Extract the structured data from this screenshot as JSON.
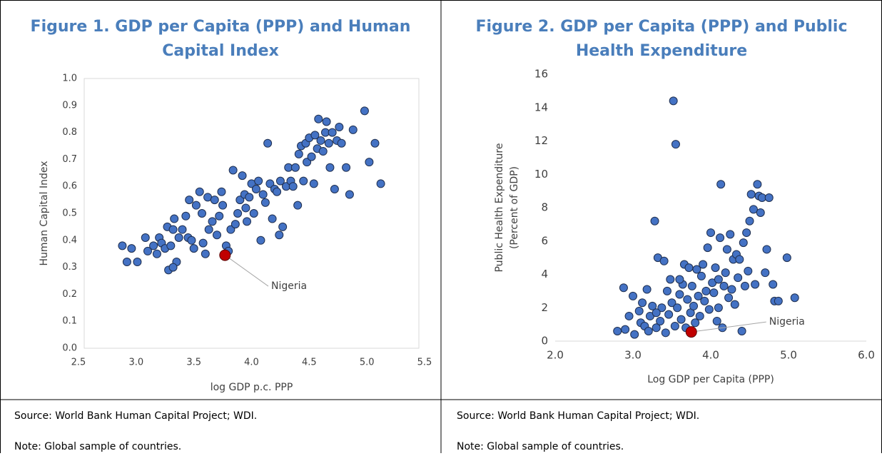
{
  "chart_data": [
    {
      "type": "scatter",
      "title": [
        "Figure 1. GDP per Capita (PPP) and Human",
        "Capital Index"
      ],
      "x_label": "log GDP p.c. PPP",
      "y_label": [
        "Human Capital Index"
      ],
      "xlim": [
        2.5,
        5.5
      ],
      "xticks": [
        2.5,
        {
          "value": 3,
          "label": "3.0"
        },
        3.5,
        {
          "value": 4,
          "label": "4.0"
        },
        4.5,
        {
          "value": 5,
          "label": "5.0"
        },
        5.5
      ],
      "ylim": [
        0,
        1
      ],
      "yticks": [
        {
          "value": 0,
          "label": "0.0"
        },
        0.1,
        0.2,
        0.3,
        0.4,
        0.5,
        0.6,
        0.7,
        0.8,
        0.9,
        {
          "value": 1,
          "label": "1.0"
        }
      ],
      "box": true,
      "color": "#4472c4",
      "x": [
        2.88,
        2.92,
        2.96,
        3.01,
        3.08,
        3.1,
        3.15,
        3.18,
        3.2,
        3.22,
        3.25,
        3.27,
        3.28,
        3.3,
        3.32,
        3.33,
        3.35,
        3.37,
        3.4,
        3.43,
        3.45,
        3.48,
        3.5,
        3.52,
        3.55,
        3.57,
        3.58,
        3.6,
        3.62,
        3.63,
        3.66,
        3.68,
        3.7,
        3.72,
        3.74,
        3.75,
        3.78,
        3.8,
        3.82,
        3.84,
        3.86,
        3.88,
        3.9,
        3.92,
        3.94,
        3.96,
        3.98,
        4.0,
        4.02,
        4.04,
        4.06,
        4.08,
        4.1,
        4.12,
        4.14,
        4.16,
        4.18,
        4.2,
        4.22,
        4.24,
        4.25,
        4.27,
        4.3,
        4.32,
        4.34,
        4.36,
        4.38,
        4.4,
        4.41,
        4.43,
        4.45,
        4.47,
        4.48,
        4.5,
        4.52,
        4.54,
        4.55,
        4.57,
        4.58,
        4.6,
        4.62,
        4.64,
        4.65,
        4.67,
        4.68,
        4.7,
        4.72,
        4.74,
        4.76,
        4.78,
        4.82,
        4.85,
        4.88,
        4.98,
        5.02,
        5.07,
        5.12,
        3.32,
        3.95,
        3.46
      ],
      "y": [
        0.38,
        0.32,
        0.37,
        0.32,
        0.41,
        0.36,
        0.38,
        0.35,
        0.41,
        0.39,
        0.37,
        0.45,
        0.29,
        0.38,
        0.44,
        0.48,
        0.32,
        0.41,
        0.44,
        0.49,
        0.41,
        0.4,
        0.37,
        0.53,
        0.58,
        0.5,
        0.39,
        0.35,
        0.56,
        0.44,
        0.47,
        0.55,
        0.42,
        0.49,
        0.58,
        0.53,
        0.38,
        0.36,
        0.44,
        0.66,
        0.46,
        0.5,
        0.55,
        0.64,
        0.57,
        0.47,
        0.56,
        0.61,
        0.5,
        0.59,
        0.62,
        0.4,
        0.57,
        0.54,
        0.76,
        0.61,
        0.48,
        0.59,
        0.58,
        0.42,
        0.62,
        0.45,
        0.6,
        0.67,
        0.62,
        0.6,
        0.67,
        0.53,
        0.72,
        0.75,
        0.62,
        0.76,
        0.69,
        0.78,
        0.71,
        0.61,
        0.79,
        0.74,
        0.85,
        0.77,
        0.73,
        0.8,
        0.84,
        0.76,
        0.67,
        0.8,
        0.59,
        0.77,
        0.82,
        0.76,
        0.67,
        0.57,
        0.81,
        0.88,
        0.69,
        0.76,
        0.61,
        0.3,
        0.52,
        0.55
      ],
      "highlight": {
        "label": "Nigeria",
        "x": 3.77,
        "y": 0.345,
        "color": "#c00000",
        "label_x": 4.17,
        "label_y": 0.23
      },
      "source": "Source: World Bank Human Capital Project; WDI.",
      "note": "Note: Global sample of countries."
    },
    {
      "type": "scatter",
      "title": [
        "Figure 2. GDP per Capita (PPP) and Public",
        "Health Expenditure"
      ],
      "x_label": "Log GDP per Capita (PPP)",
      "y_label": [
        "Public Health Expenditure",
        "(Percent of GDP)"
      ],
      "xlim": [
        2,
        6
      ],
      "xticks": [
        {
          "value": 2,
          "label": "2.0"
        },
        {
          "value": 3,
          "label": "3.0"
        },
        {
          "value": 4,
          "label": "4.0"
        },
        {
          "value": 5,
          "label": "5.0"
        },
        {
          "value": 6,
          "label": "6.0"
        }
      ],
      "ylim": [
        0,
        16
      ],
      "yticks": [
        0,
        2,
        4,
        6,
        8,
        10,
        12,
        14,
        16
      ],
      "box": false,
      "color": "#4472c4",
      "x": [
        2.8,
        2.88,
        2.9,
        2.95,
        3.0,
        3.02,
        3.08,
        3.1,
        3.12,
        3.15,
        3.18,
        3.2,
        3.22,
        3.25,
        3.28,
        3.3,
        3.32,
        3.35,
        3.37,
        3.4,
        3.42,
        3.44,
        3.46,
        3.48,
        3.5,
        3.52,
        3.54,
        3.55,
        3.57,
        3.6,
        3.62,
        3.64,
        3.66,
        3.68,
        3.7,
        3.72,
        3.74,
        3.76,
        3.78,
        3.8,
        3.82,
        3.84,
        3.86,
        3.88,
        3.9,
        3.92,
        3.94,
        3.96,
        3.98,
        4.0,
        4.02,
        4.04,
        4.06,
        4.08,
        4.1,
        4.12,
        4.13,
        4.15,
        4.17,
        4.19,
        4.21,
        4.23,
        4.25,
        4.27,
        4.29,
        4.31,
        4.33,
        4.35,
        4.37,
        4.4,
        4.42,
        4.44,
        4.46,
        4.48,
        4.5,
        4.52,
        4.55,
        4.57,
        4.6,
        4.62,
        4.64,
        4.66,
        4.7,
        4.72,
        4.75,
        4.8,
        4.82,
        4.87,
        4.98,
        5.08,
        3.6,
        4.1,
        3.3
      ],
      "y": [
        0.6,
        3.2,
        0.7,
        1.5,
        2.7,
        0.4,
        1.8,
        1.1,
        2.3,
        0.9,
        3.1,
        0.6,
        1.5,
        2.1,
        7.2,
        0.8,
        5.0,
        1.2,
        2.0,
        4.8,
        0.5,
        3.0,
        1.6,
        3.7,
        2.3,
        14.4,
        0.9,
        11.8,
        2.0,
        2.8,
        1.3,
        3.4,
        4.6,
        0.8,
        2.5,
        4.4,
        1.7,
        3.3,
        2.1,
        1.1,
        4.3,
        2.7,
        1.5,
        3.9,
        4.6,
        2.4,
        3.0,
        5.6,
        1.9,
        6.5,
        3.5,
        2.9,
        4.4,
        1.2,
        3.7,
        6.2,
        9.4,
        0.8,
        3.3,
        4.1,
        5.5,
        2.6,
        6.4,
        3.1,
        4.9,
        2.2,
        5.2,
        3.8,
        4.9,
        0.6,
        5.9,
        3.3,
        6.5,
        4.2,
        7.2,
        8.8,
        7.9,
        3.4,
        9.4,
        8.7,
        7.7,
        8.6,
        4.1,
        5.5,
        8.6,
        3.4,
        2.4,
        2.4,
        5.0,
        2.6,
        3.7,
        2.0,
        1.7
      ],
      "highlight": {
        "label": "Nigeria",
        "x": 3.75,
        "y": 0.55,
        "color": "#c00000",
        "label_x": 4.75,
        "label_y": 1.15
      },
      "source": "Source: World Bank Human Capital Project; WDI.",
      "note": "Note: Global sample of countries."
    }
  ]
}
